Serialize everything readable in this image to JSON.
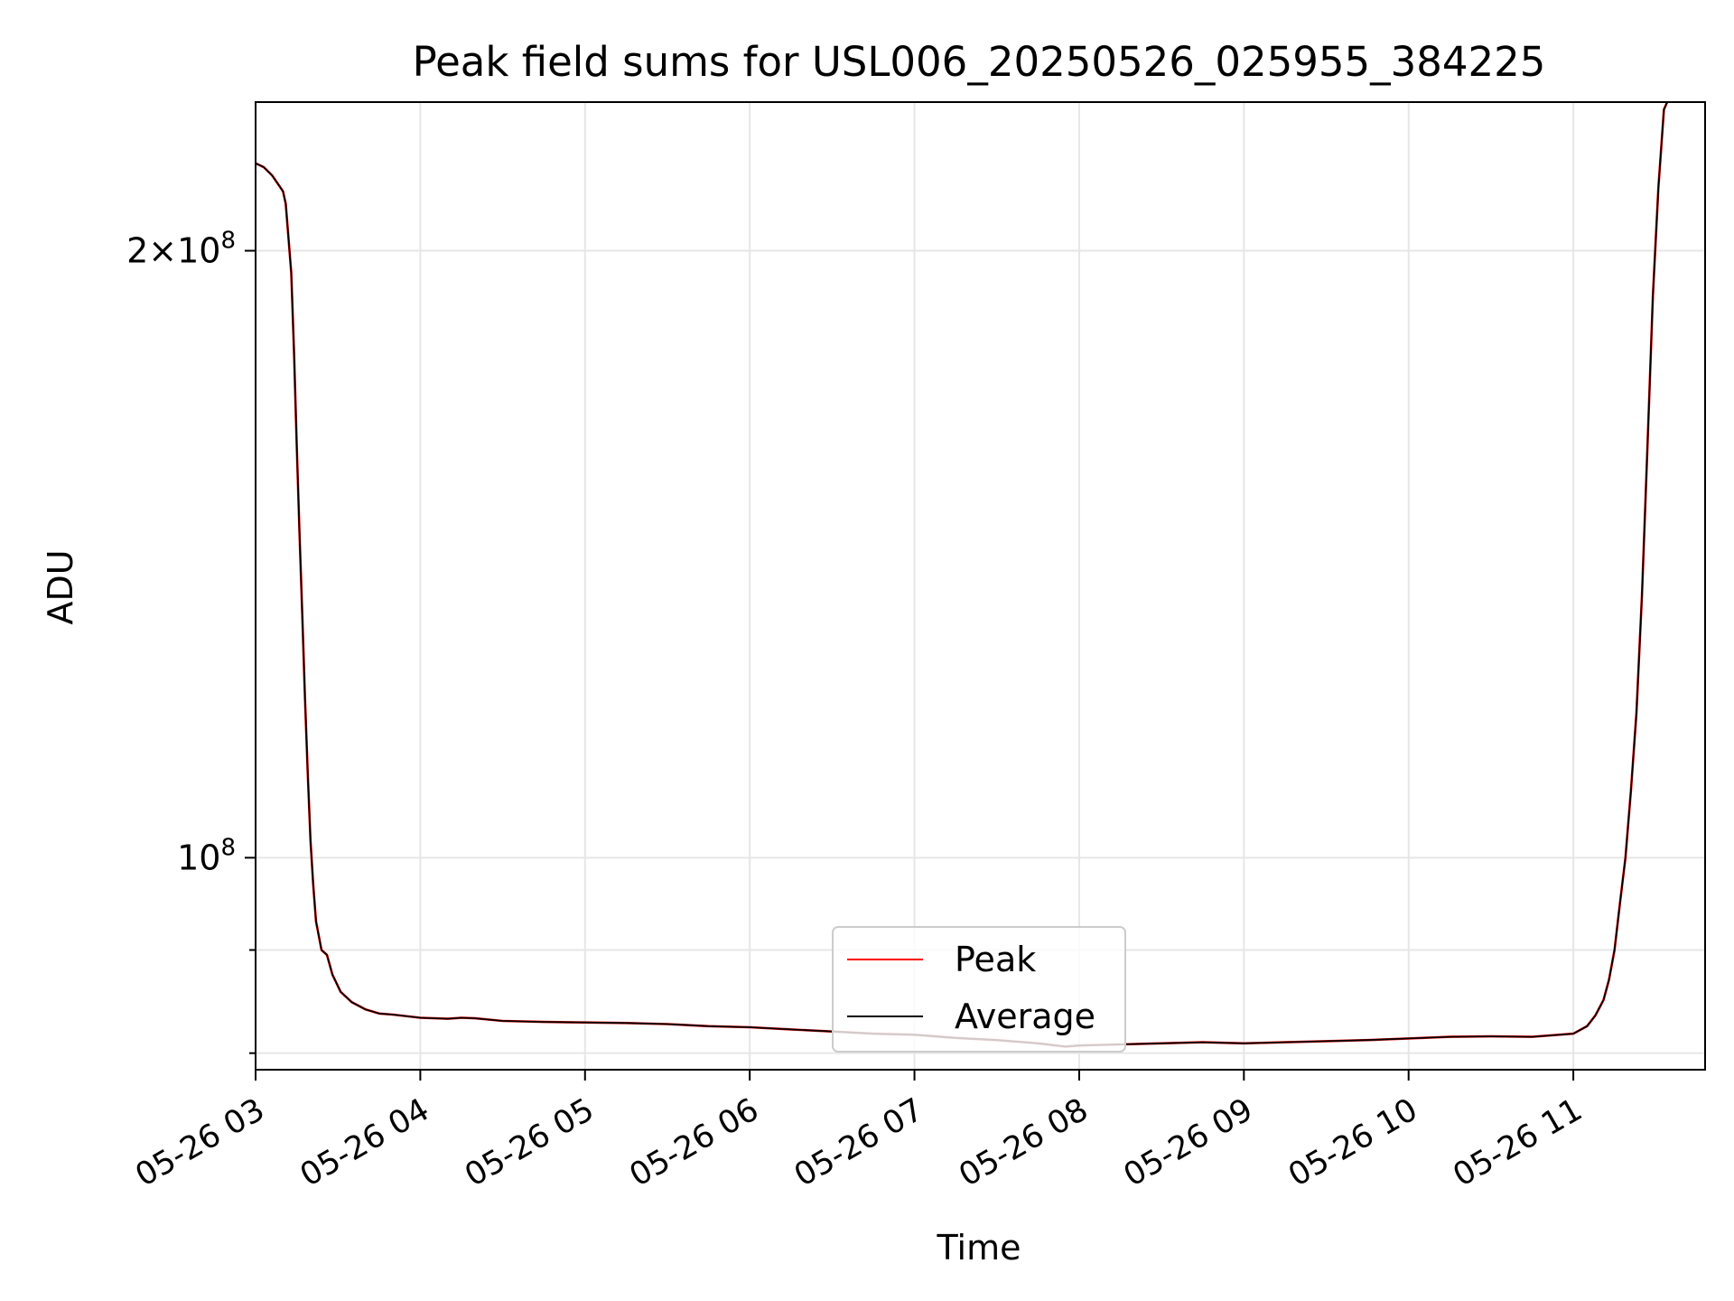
{
  "chart_data": {
    "type": "line",
    "title": "Peak field sums for USL006_20250526_025955_384225",
    "xlabel": "Time",
    "ylabel": "ADU",
    "x_axis": {
      "kind": "datetime",
      "date": "2025-05-26",
      "range": [
        "03:00",
        "11:48"
      ],
      "ticks": [
        "03:00",
        "04:00",
        "05:00",
        "06:00",
        "07:00",
        "08:00",
        "09:00",
        "10:00",
        "11:00"
      ],
      "tick_labels": [
        "05-26 03",
        "05-26 04",
        "05-26 05",
        "05-26 06",
        "05-26 07",
        "05-26 08",
        "05-26 09",
        "05-26 10",
        "05-26 11"
      ]
    },
    "y_axis": {
      "scale": "log",
      "range": [
        78500000,
        237000000
      ],
      "major_ticks": [
        100000000,
        200000000
      ],
      "major_tick_labels": [
        "10^8",
        "2×10^8"
      ],
      "minor_ticks": [
        80000000,
        90000000
      ]
    },
    "grid": true,
    "legend": {
      "placement": "lower center",
      "entries": [
        "Peak",
        "Average"
      ]
    },
    "series": [
      {
        "name": "Peak",
        "color": "#ff0000",
        "points": [
          [
            "03:00",
            221000000
          ],
          [
            "03:03",
            220000000
          ],
          [
            "03:06",
            218000000
          ],
          [
            "03:08",
            216000000
          ],
          [
            "03:10",
            214000000
          ],
          [
            "03:11",
            211000000
          ],
          [
            "03:13",
            195000000
          ],
          [
            "03:14",
            178000000
          ],
          [
            "03:15",
            160000000
          ],
          [
            "03:16",
            145000000
          ],
          [
            "03:17",
            132000000
          ],
          [
            "03:18",
            120000000
          ],
          [
            "03:19",
            110000000
          ],
          [
            "03:20",
            102000000
          ],
          [
            "03:21",
            97000000
          ],
          [
            "03:22",
            93000000
          ],
          [
            "03:24",
            90000000
          ],
          [
            "03:26",
            89500000
          ],
          [
            "03:28",
            87500000
          ],
          [
            "03:31",
            85800000
          ],
          [
            "03:35",
            84800000
          ],
          [
            "03:40",
            84100000
          ],
          [
            "03:45",
            83700000
          ],
          [
            "03:50",
            83600000
          ],
          [
            "04:00",
            83300000
          ],
          [
            "04:10",
            83200000
          ],
          [
            "04:15",
            83300000
          ],
          [
            "04:20",
            83250000
          ],
          [
            "04:30",
            83000000
          ],
          [
            "04:45",
            82900000
          ],
          [
            "05:00",
            82850000
          ],
          [
            "05:15",
            82800000
          ],
          [
            "05:30",
            82700000
          ],
          [
            "05:45",
            82500000
          ],
          [
            "06:00",
            82400000
          ],
          [
            "06:15",
            82200000
          ],
          [
            "06:30",
            82000000
          ],
          [
            "06:45",
            81800000
          ],
          [
            "07:00",
            81700000
          ],
          [
            "07:15",
            81400000
          ],
          [
            "07:30",
            81200000
          ],
          [
            "07:45",
            80900000
          ],
          [
            "07:55",
            80600000
          ],
          [
            "08:00",
            80700000
          ],
          [
            "08:15",
            80800000
          ],
          [
            "08:30",
            80900000
          ],
          [
            "08:45",
            81000000
          ],
          [
            "09:00",
            80900000
          ],
          [
            "09:15",
            81000000
          ],
          [
            "09:30",
            81100000
          ],
          [
            "09:45",
            81200000
          ],
          [
            "10:00",
            81350000
          ],
          [
            "10:15",
            81500000
          ],
          [
            "10:30",
            81550000
          ],
          [
            "10:45",
            81500000
          ],
          [
            "11:00",
            81800000
          ],
          [
            "11:05",
            82500000
          ],
          [
            "11:08",
            83500000
          ],
          [
            "11:11",
            85000000
          ],
          [
            "11:13",
            87000000
          ],
          [
            "11:15",
            90000000
          ],
          [
            "11:17",
            95000000
          ],
          [
            "11:19",
            100000000
          ],
          [
            "11:21",
            108000000
          ],
          [
            "11:23",
            118000000
          ],
          [
            "11:25",
            135000000
          ],
          [
            "11:27",
            160000000
          ],
          [
            "11:29",
            190000000
          ],
          [
            "11:31",
            215000000
          ],
          [
            "11:33",
            235000000
          ],
          [
            "11:36",
            240000000
          ]
        ]
      },
      {
        "name": "Average",
        "color": "#000000",
        "points": [
          [
            "03:00",
            221000000
          ],
          [
            "03:03",
            220000000
          ],
          [
            "03:06",
            218000000
          ],
          [
            "03:08",
            216000000
          ],
          [
            "03:10",
            214000000
          ],
          [
            "03:11",
            211000000
          ],
          [
            "03:13",
            195000000
          ],
          [
            "03:14",
            178000000
          ],
          [
            "03:15",
            160000000
          ],
          [
            "03:16",
            145000000
          ],
          [
            "03:17",
            132000000
          ],
          [
            "03:18",
            120000000
          ],
          [
            "03:19",
            110000000
          ],
          [
            "03:20",
            102000000
          ],
          [
            "03:21",
            97000000
          ],
          [
            "03:22",
            93000000
          ],
          [
            "03:24",
            90000000
          ],
          [
            "03:26",
            89500000
          ],
          [
            "03:28",
            87500000
          ],
          [
            "03:31",
            85800000
          ],
          [
            "03:35",
            84800000
          ],
          [
            "03:40",
            84100000
          ],
          [
            "03:45",
            83700000
          ],
          [
            "03:50",
            83600000
          ],
          [
            "04:00",
            83300000
          ],
          [
            "04:10",
            83200000
          ],
          [
            "04:15",
            83300000
          ],
          [
            "04:20",
            83250000
          ],
          [
            "04:30",
            83000000
          ],
          [
            "04:45",
            82900000
          ],
          [
            "05:00",
            82850000
          ],
          [
            "05:15",
            82800000
          ],
          [
            "05:30",
            82700000
          ],
          [
            "05:45",
            82500000
          ],
          [
            "06:00",
            82400000
          ],
          [
            "06:15",
            82200000
          ],
          [
            "06:30",
            82000000
          ],
          [
            "06:45",
            81800000
          ],
          [
            "07:00",
            81700000
          ],
          [
            "07:15",
            81400000
          ],
          [
            "07:30",
            81200000
          ],
          [
            "07:45",
            80900000
          ],
          [
            "07:55",
            80600000
          ],
          [
            "08:00",
            80700000
          ],
          [
            "08:15",
            80800000
          ],
          [
            "08:30",
            80900000
          ],
          [
            "08:45",
            81000000
          ],
          [
            "09:00",
            80900000
          ],
          [
            "09:15",
            81000000
          ],
          [
            "09:30",
            81100000
          ],
          [
            "09:45",
            81200000
          ],
          [
            "10:00",
            81350000
          ],
          [
            "10:15",
            81500000
          ],
          [
            "10:30",
            81550000
          ],
          [
            "10:45",
            81500000
          ],
          [
            "11:00",
            81800000
          ],
          [
            "11:05",
            82500000
          ],
          [
            "11:08",
            83500000
          ],
          [
            "11:11",
            85000000
          ],
          [
            "11:13",
            87000000
          ],
          [
            "11:15",
            90000000
          ],
          [
            "11:17",
            95000000
          ],
          [
            "11:19",
            100000000
          ],
          [
            "11:21",
            108000000
          ],
          [
            "11:23",
            118000000
          ],
          [
            "11:25",
            135000000
          ],
          [
            "11:27",
            160000000
          ],
          [
            "11:29",
            190000000
          ],
          [
            "11:31",
            215000000
          ],
          [
            "11:33",
            235000000
          ],
          [
            "11:36",
            240000000
          ]
        ]
      }
    ]
  }
}
